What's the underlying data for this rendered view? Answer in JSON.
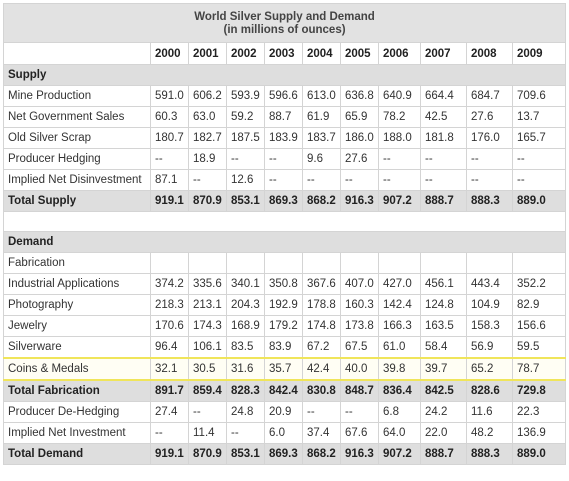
{
  "title": "World Silver Supply and Demand",
  "subtitle": "(in millions of ounces)",
  "years": [
    "2000",
    "2001",
    "2002",
    "2003",
    "2004",
    "2005",
    "2006",
    "2007",
    "2008",
    "2009"
  ],
  "supply": {
    "heading": "Supply",
    "rows": [
      {
        "label": "Mine Production",
        "values": [
          "591.0",
          "606.2",
          "593.9",
          "596.6",
          "613.0",
          "636.8",
          "640.9",
          "664.4",
          "684.7",
          "709.6"
        ]
      },
      {
        "label": "Net Government Sales",
        "values": [
          "60.3",
          "63.0",
          "59.2",
          "88.7",
          "61.9",
          "65.9",
          "78.2",
          "42.5",
          "27.6",
          "13.7"
        ]
      },
      {
        "label": "Old Silver Scrap",
        "values": [
          "180.7",
          "182.7",
          "187.5",
          "183.9",
          "183.7",
          "186.0",
          "188.0",
          "181.8",
          "176.0",
          "165.7"
        ]
      },
      {
        "label": "Producer Hedging",
        "values": [
          "--",
          "18.9",
          "--",
          "--",
          "9.6",
          "27.6",
          "--",
          "--",
          "--",
          "--"
        ]
      },
      {
        "label": "Implied Net Disinvestment",
        "values": [
          "87.1",
          "--",
          "12.6",
          "--",
          "--",
          "--",
          "--",
          "--",
          "--",
          "--"
        ]
      }
    ],
    "total": {
      "label": "Total Supply",
      "values": [
        "919.1",
        "870.9",
        "853.1",
        "869.3",
        "868.2",
        "916.3",
        "907.2",
        "888.7",
        "888.3",
        "889.0"
      ]
    }
  },
  "demand": {
    "heading": "Demand",
    "fabrication_label": "Fabrication",
    "rows": [
      {
        "label": "Industrial Applications",
        "values": [
          "374.2",
          "335.6",
          "340.1",
          "350.8",
          "367.6",
          "407.0",
          "427.0",
          "456.1",
          "443.4",
          "352.2"
        ]
      },
      {
        "label": "Photography",
        "values": [
          "218.3",
          "213.1",
          "204.3",
          "192.9",
          "178.8",
          "160.3",
          "142.4",
          "124.8",
          "104.9",
          "82.9"
        ]
      },
      {
        "label": "Jewelry",
        "values": [
          "170.6",
          "174.3",
          "168.9",
          "179.2",
          "174.8",
          "173.8",
          "166.3",
          "163.5",
          "158.3",
          "156.6"
        ]
      },
      {
        "label": "Silverware",
        "values": [
          "96.4",
          "106.1",
          "83.5",
          "83.9",
          "67.2",
          "67.5",
          "61.0",
          "58.4",
          "56.9",
          "59.5"
        ]
      },
      {
        "label": "Coins & Medals",
        "values": [
          "32.1",
          "30.5",
          "31.6",
          "35.7",
          "42.4",
          "40.0",
          "39.8",
          "39.7",
          "65.2",
          "78.7"
        ]
      }
    ],
    "total_fabrication": {
      "label": "Total Fabrication",
      "values": [
        "891.7",
        "859.4",
        "828.3",
        "842.4",
        "830.8",
        "848.7",
        "836.4",
        "842.5",
        "828.6",
        "729.8"
      ]
    },
    "rows2": [
      {
        "label": "Producer De-Hedging",
        "values": [
          "27.4",
          "--",
          "24.8",
          "20.9",
          "--",
          "--",
          "6.8",
          "24.2",
          "11.6",
          "22.3"
        ]
      },
      {
        "label": "Implied Net Investment",
        "values": [
          "--",
          "11.4",
          "--",
          "6.0",
          "37.4",
          "67.6",
          "64.0",
          "22.0",
          "48.2",
          "136.9"
        ]
      }
    ],
    "total": {
      "label": "Total Demand",
      "values": [
        "919.1",
        "870.9",
        "853.1",
        "869.3",
        "868.2",
        "916.3",
        "907.2",
        "888.7",
        "888.3",
        "889.0"
      ]
    }
  },
  "highlight_color": "#f0e55a"
}
